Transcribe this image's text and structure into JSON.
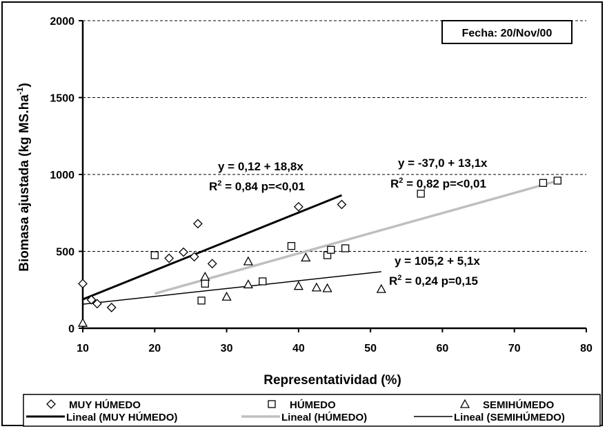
{
  "chart_data": {
    "type": "scatter",
    "xlabel": "Representatividad (%)",
    "ylabel": "Biomasa ajustada (kg MS.ha",
    "ylabel_sup": "-1",
    "ylabel_close": ")",
    "xlim": [
      10,
      80
    ],
    "ylim": [
      0,
      2000
    ],
    "x_ticks": [
      "10",
      "20",
      "30",
      "40",
      "50",
      "60",
      "70",
      "80"
    ],
    "y_ticks": [
      "0",
      "500",
      "1000",
      "1500",
      "2000"
    ],
    "grid": "horizontal dashed",
    "date_box": "Fecha: 20/Nov/00",
    "series": [
      {
        "name": "MUY HÚMEDO",
        "marker": "diamond",
        "color": "#000000",
        "points": [
          [
            10,
            290
          ],
          [
            11.2,
            185
          ],
          [
            12,
            160
          ],
          [
            14,
            135
          ],
          [
            22,
            455
          ],
          [
            24,
            495
          ],
          [
            25.5,
            465
          ],
          [
            26,
            680
          ],
          [
            28,
            420
          ],
          [
            40,
            790
          ],
          [
            46,
            805
          ]
        ],
        "fit": {
          "name": "Lineal (MUY HÚMEDO)",
          "intercept": 0.12,
          "slope": 18.8,
          "x_range": [
            10,
            46
          ],
          "color": "#000000",
          "width": 3
        },
        "equation": "y = 0,12 + 18,8x",
        "r2_prefix": "R",
        "r2_sup": "2",
        "r2_rest": " = 0,84  p=<0,01"
      },
      {
        "name": "HÚMEDO",
        "marker": "square",
        "color": "#000000",
        "points": [
          [
            20,
            475
          ],
          [
            26.5,
            180
          ],
          [
            27,
            290
          ],
          [
            35,
            305
          ],
          [
            39,
            535
          ],
          [
            44,
            475
          ],
          [
            44.5,
            510
          ],
          [
            46.5,
            520
          ],
          [
            57,
            875
          ],
          [
            74,
            945
          ],
          [
            76,
            960
          ]
        ],
        "fit": {
          "name": "Lineal (HÚMEDO)",
          "intercept": -37.0,
          "slope": 13.1,
          "x_range": [
            20,
            76
          ],
          "color": "#bfbfbf",
          "width": 3.5
        },
        "equation": "y = -37,0 + 13,1x",
        "r2_prefix": "R",
        "r2_sup": "2",
        "r2_rest": " = 0,82  p=<0,01"
      },
      {
        "name": "SEMIHÚMEDO",
        "marker": "triangle",
        "color": "#000000",
        "points": [
          [
            10,
            35
          ],
          [
            27,
            335
          ],
          [
            30,
            205
          ],
          [
            33,
            285
          ],
          [
            33,
            435
          ],
          [
            40,
            275
          ],
          [
            41,
            460
          ],
          [
            42.5,
            265
          ],
          [
            44,
            260
          ],
          [
            51.5,
            255
          ]
        ],
        "fit": {
          "name": "Lineal (SEMIHÚMEDO)",
          "intercept": 105.2,
          "slope": 5.1,
          "x_range": [
            10,
            51.5
          ],
          "color": "#000000",
          "width": 1.5
        },
        "equation": "y = 105,2 + 5,1x",
        "r2_prefix": "R",
        "r2_sup": "2",
        "r2_rest": " = 0,24  p=0,15"
      }
    ]
  }
}
